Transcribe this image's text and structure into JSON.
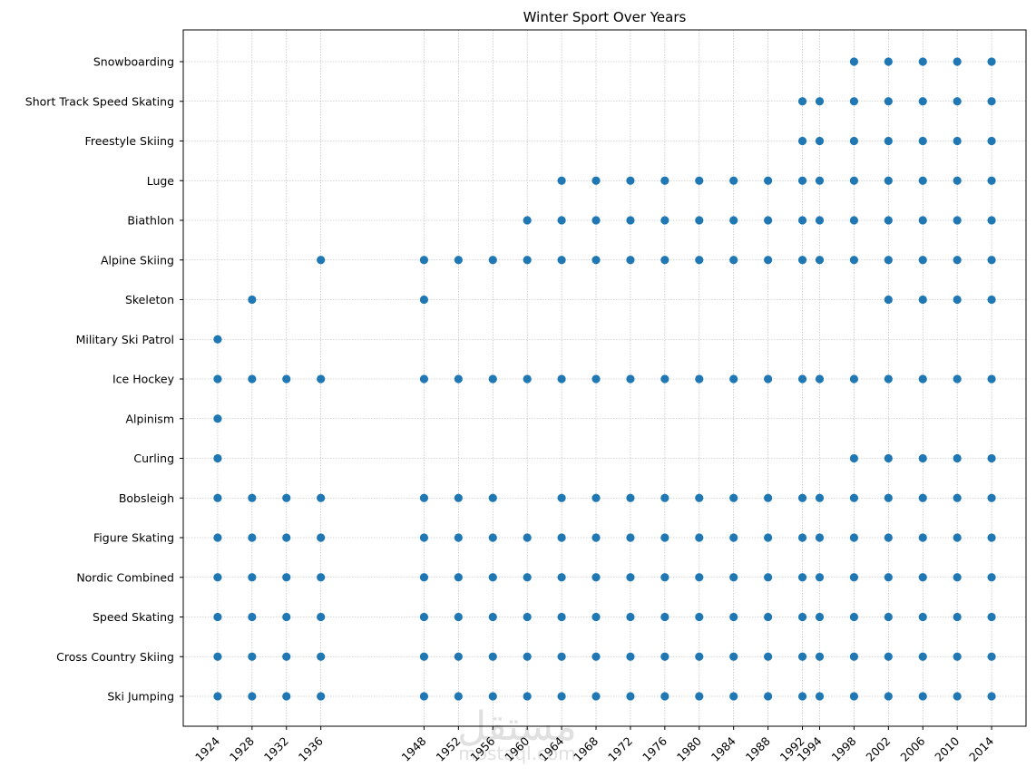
{
  "chart_data": {
    "type": "scatter",
    "title": "Winter Sport Over Years",
    "xlabel": "",
    "ylabel": "",
    "x_ticks": [
      1924,
      1928,
      1932,
      1936,
      1948,
      1952,
      1956,
      1960,
      1964,
      1968,
      1972,
      1976,
      1980,
      1984,
      1988,
      1992,
      1994,
      1998,
      2002,
      2006,
      2010,
      2014
    ],
    "xlim": [
      1920,
      2018
    ],
    "categories": [
      "Ski Jumping",
      "Cross Country Skiing",
      "Speed Skating",
      "Nordic Combined",
      "Figure Skating",
      "Bobsleigh",
      "Curling",
      "Alpinism",
      "Ice Hockey",
      "Military Ski Patrol",
      "Skeleton",
      "Alpine Skiing",
      "Biathlon",
      "Luge",
      "Freestyle Skiing",
      "Short Track Speed Skating",
      "Snowboarding"
    ],
    "grid": true,
    "marker_color": "#1f77b4",
    "points": {
      "Ski Jumping": [
        1924,
        1928,
        1932,
        1936,
        1948,
        1952,
        1956,
        1960,
        1964,
        1968,
        1972,
        1976,
        1980,
        1984,
        1988,
        1992,
        1994,
        1998,
        2002,
        2006,
        2010,
        2014
      ],
      "Cross Country Skiing": [
        1924,
        1928,
        1932,
        1936,
        1948,
        1952,
        1956,
        1960,
        1964,
        1968,
        1972,
        1976,
        1980,
        1984,
        1988,
        1992,
        1994,
        1998,
        2002,
        2006,
        2010,
        2014
      ],
      "Speed Skating": [
        1924,
        1928,
        1932,
        1936,
        1948,
        1952,
        1956,
        1960,
        1964,
        1968,
        1972,
        1976,
        1980,
        1984,
        1988,
        1992,
        1994,
        1998,
        2002,
        2006,
        2010,
        2014
      ],
      "Nordic Combined": [
        1924,
        1928,
        1932,
        1936,
        1948,
        1952,
        1956,
        1960,
        1964,
        1968,
        1972,
        1976,
        1980,
        1984,
        1988,
        1992,
        1994,
        1998,
        2002,
        2006,
        2010,
        2014
      ],
      "Figure Skating": [
        1924,
        1928,
        1932,
        1936,
        1948,
        1952,
        1956,
        1960,
        1964,
        1968,
        1972,
        1976,
        1980,
        1984,
        1988,
        1992,
        1994,
        1998,
        2002,
        2006,
        2010,
        2014
      ],
      "Bobsleigh": [
        1924,
        1928,
        1932,
        1936,
        1948,
        1952,
        1956,
        1964,
        1968,
        1972,
        1976,
        1980,
        1984,
        1988,
        1992,
        1994,
        1998,
        2002,
        2006,
        2010,
        2014
      ],
      "Curling": [
        1924,
        1998,
        2002,
        2006,
        2010,
        2014
      ],
      "Alpinism": [
        1924
      ],
      "Ice Hockey": [
        1924,
        1928,
        1932,
        1936,
        1948,
        1952,
        1956,
        1960,
        1964,
        1968,
        1972,
        1976,
        1980,
        1984,
        1988,
        1992,
        1994,
        1998,
        2002,
        2006,
        2010,
        2014
      ],
      "Military Ski Patrol": [
        1924
      ],
      "Skeleton": [
        1928,
        1948,
        2002,
        2006,
        2010,
        2014
      ],
      "Alpine Skiing": [
        1936,
        1948,
        1952,
        1956,
        1960,
        1964,
        1968,
        1972,
        1976,
        1980,
        1984,
        1988,
        1992,
        1994,
        1998,
        2002,
        2006,
        2010,
        2014
      ],
      "Biathlon": [
        1960,
        1964,
        1968,
        1972,
        1976,
        1980,
        1984,
        1988,
        1992,
        1994,
        1998,
        2002,
        2006,
        2010,
        2014
      ],
      "Luge": [
        1964,
        1968,
        1972,
        1976,
        1980,
        1984,
        1988,
        1992,
        1994,
        1998,
        2002,
        2006,
        2010,
        2014
      ],
      "Freestyle Skiing": [
        1992,
        1994,
        1998,
        2002,
        2006,
        2010,
        2014
      ],
      "Short Track Speed Skating": [
        1992,
        1994,
        1998,
        2002,
        2006,
        2010,
        2014
      ],
      "Snowboarding": [
        1998,
        2002,
        2006,
        2010,
        2014
      ]
    }
  },
  "watermark": {
    "text": "مستقل",
    "subtext": "mostaql.com"
  }
}
